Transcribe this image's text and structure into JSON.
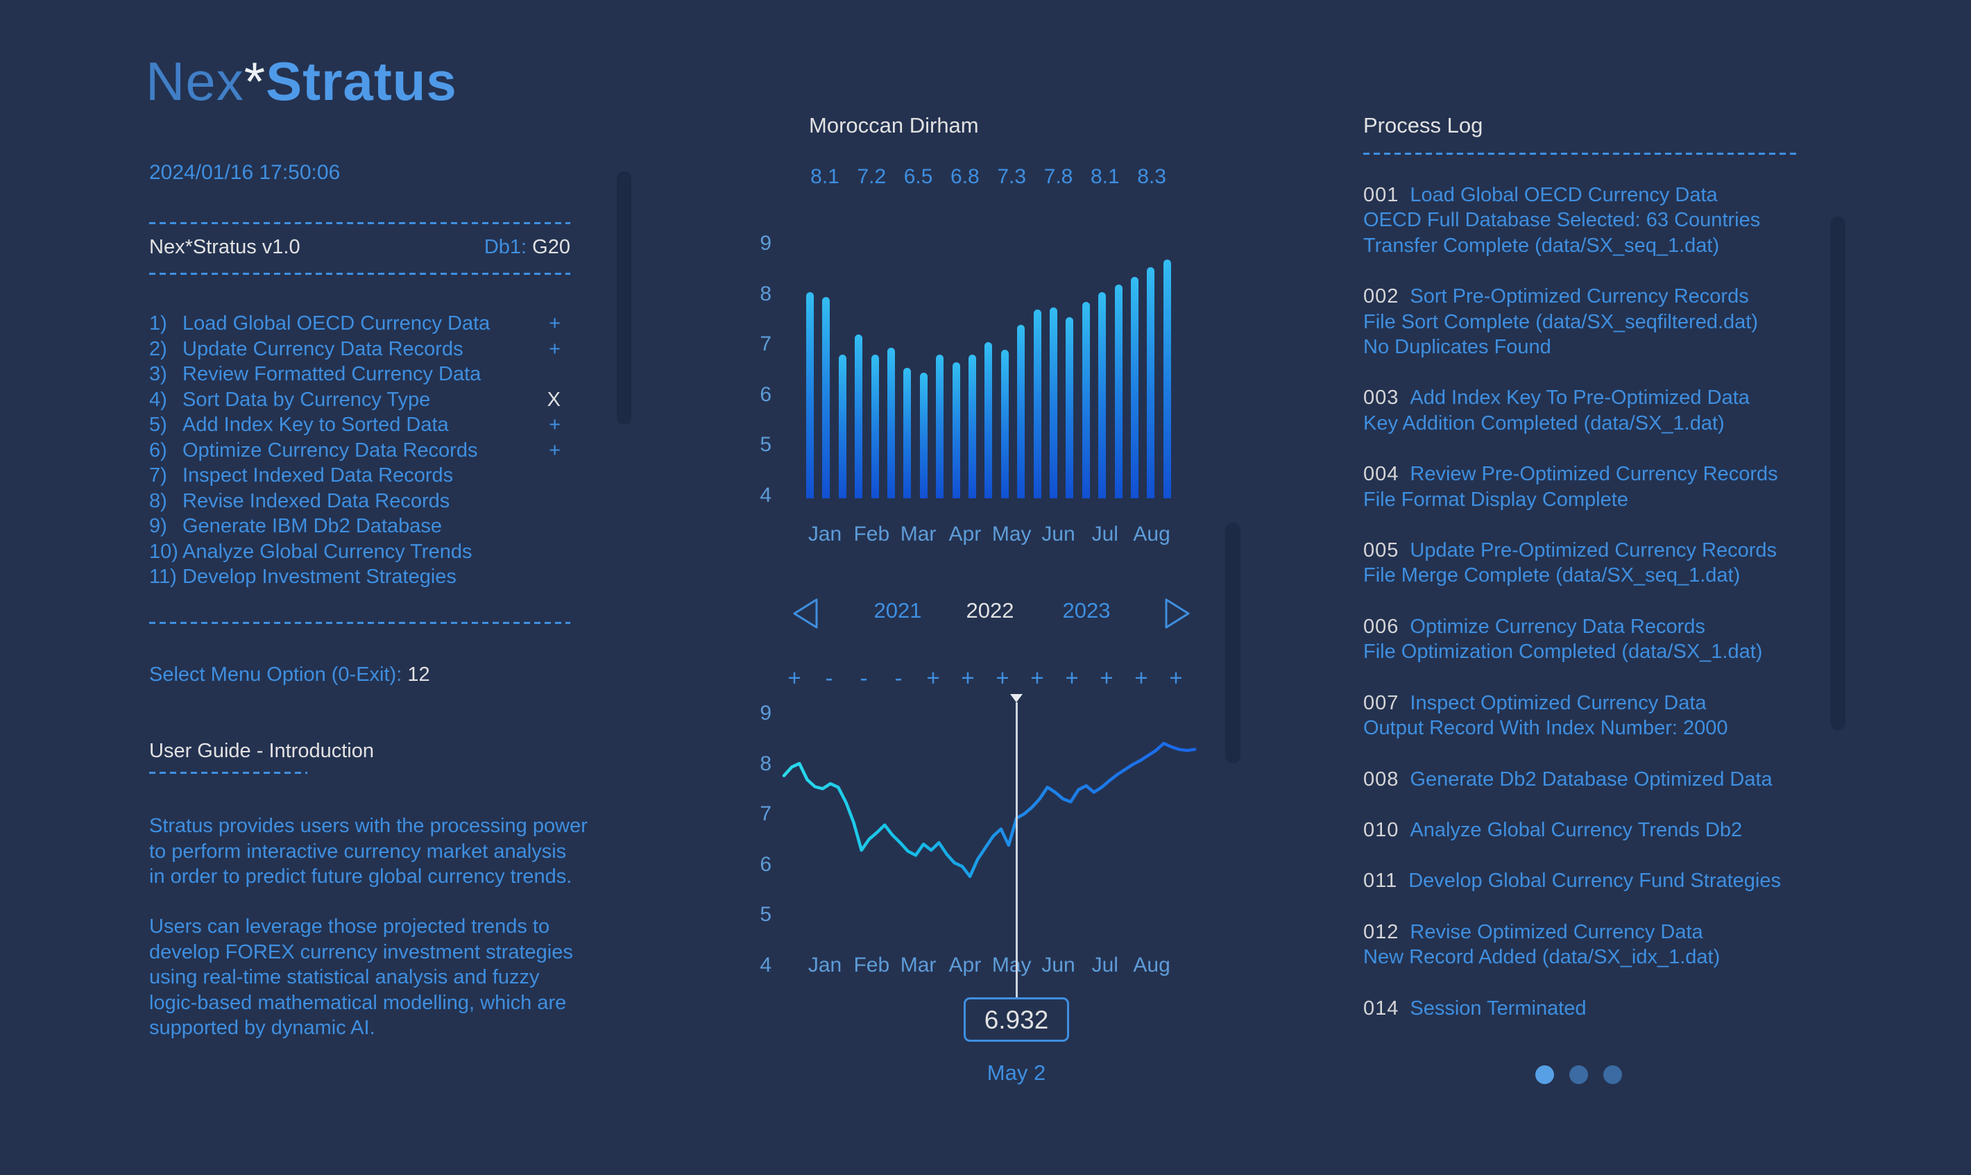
{
  "app": {
    "logo_prefix": "Nex",
    "logo_star": "*",
    "logo_suffix": "Stratus",
    "timestamp": "2024/01/16 17:50:06",
    "version": "Nex*Stratus v1.0",
    "db_label": "Db1:",
    "db_value": "G20"
  },
  "menu": {
    "items": [
      {
        "num": "1)",
        "label": "Load Global OECD Currency Data",
        "marker": "+"
      },
      {
        "num": "2)",
        "label": "Update Currency Data Records",
        "marker": "+"
      },
      {
        "num": "3)",
        "label": "Review Formatted Currency Data",
        "marker": ""
      },
      {
        "num": "4)",
        "label": "Sort Data by Currency Type",
        "marker": "X"
      },
      {
        "num": "5)",
        "label": "Add Index Key to Sorted Data",
        "marker": "+"
      },
      {
        "num": "6)",
        "label": "Optimize Currency Data Records",
        "marker": "+"
      },
      {
        "num": "7)",
        "label": "Inspect Indexed Data Records",
        "marker": ""
      },
      {
        "num": "8)",
        "label": "Revise Indexed Data Records",
        "marker": ""
      },
      {
        "num": "9)",
        "label": "Generate IBM Db2 Database",
        "marker": ""
      },
      {
        "num": "10)",
        "label": "Analyze Global Currency Trends",
        "marker": ""
      },
      {
        "num": "11)",
        "label": "Develop Investment Strategies",
        "marker": ""
      }
    ],
    "prompt": "Select Menu Option (0-Exit):",
    "prompt_value": "12"
  },
  "guide": {
    "title": "User Guide - Introduction",
    "paragraphs": [
      [
        "Stratus provides users with the processing power",
        "to perform interactive currency market analysis",
        "in order to predict future global currency trends."
      ],
      [
        "Users can leverage those projected trends to",
        "develop FOREX currency investment strategies",
        "using real-time statistical analysis and fuzzy",
        "logic-based mathematical modelling, which are",
        "supported by dynamic AI."
      ]
    ]
  },
  "middle": {
    "title": "Moroccan Dirham",
    "monthly_values": [
      "8.1",
      "7.2",
      "6.5",
      "6.8",
      "7.3",
      "7.8",
      "8.1",
      "8.3"
    ],
    "months": [
      "Jan",
      "Feb",
      "Mar",
      "Apr",
      "May",
      "Jun",
      "Jul",
      "Aug"
    ],
    "years": [
      "2021",
      "2022",
      "2023"
    ],
    "selected_year": "2022",
    "plus_minus": [
      "+",
      "-",
      "-",
      "-",
      "+",
      "+",
      "+",
      "+",
      "+",
      "+",
      "+",
      "+"
    ],
    "tooltip": {
      "value": "6.932",
      "date": "May 2"
    }
  },
  "chart_data": [
    {
      "type": "bar",
      "title": "Moroccan Dirham",
      "categories": [
        "Jan",
        "Feb",
        "Mar",
        "Apr",
        "May",
        "Jun",
        "Jul",
        "Aug"
      ],
      "monthly_averages": [
        8.1,
        7.2,
        6.5,
        6.8,
        7.3,
        7.8,
        8.1,
        8.3
      ],
      "values": [
        8.1,
        8.0,
        6.85,
        7.25,
        6.85,
        7.0,
        6.6,
        6.5,
        6.85,
        6.7,
        6.85,
        7.1,
        6.95,
        7.45,
        7.75,
        7.8,
        7.6,
        7.9,
        8.1,
        8.25,
        8.4,
        8.6,
        8.75
      ],
      "ylabel": "",
      "xlabel": "",
      "ylim": [
        4,
        9
      ],
      "yticks": [
        9,
        8,
        7,
        6,
        5,
        4
      ],
      "grid": false,
      "legend": "none",
      "selected_year": "2022"
    },
    {
      "type": "line",
      "title": "Moroccan Dirham (daily, 2022 Jan-Aug)",
      "categories": [
        "Jan",
        "Feb",
        "Mar",
        "Apr",
        "May",
        "Jun",
        "Jul",
        "Aug"
      ],
      "values": [
        7.78,
        7.95,
        8.02,
        7.7,
        7.56,
        7.52,
        7.62,
        7.55,
        7.25,
        6.85,
        6.3,
        6.52,
        6.65,
        6.8,
        6.6,
        6.45,
        6.28,
        6.2,
        6.42,
        6.3,
        6.45,
        6.22,
        6.05,
        5.98,
        5.78,
        6.12,
        6.35,
        6.58,
        6.72,
        6.4,
        6.932,
        7.02,
        7.15,
        7.32,
        7.55,
        7.45,
        7.32,
        7.26,
        7.5,
        7.58,
        7.45,
        7.55,
        7.68,
        7.8,
        7.9,
        8.0,
        8.08,
        8.18,
        8.28,
        8.42,
        8.35,
        8.3,
        8.28,
        8.3
      ],
      "ylim": [
        4,
        9
      ],
      "yticks": [
        9,
        8,
        7,
        6,
        5,
        4
      ],
      "grid": false,
      "legend": "none",
      "marker": {
        "value": "6.932",
        "label": "May 2"
      }
    }
  ],
  "process_log": {
    "title": "Process Log",
    "entries": [
      {
        "num": "001",
        "lines": [
          "Load Global OECD Currency Data",
          "OECD Full Database Selected: 63 Countries",
          "Transfer Complete (data/SX_seq_1.dat)"
        ]
      },
      {
        "num": "002",
        "lines": [
          "Sort Pre-Optimized Currency Records",
          "File Sort Complete (data/SX_seqfiltered.dat)",
          "No Duplicates Found"
        ]
      },
      {
        "num": "003",
        "lines": [
          "Add Index Key To Pre-Optimized Data",
          "Key Addition Completed (data/SX_1.dat)"
        ]
      },
      {
        "num": "004",
        "lines": [
          "Review Pre-Optimized Currency Records",
          "File Format Display Complete"
        ]
      },
      {
        "num": "005",
        "lines": [
          "Update Pre-Optimized Currency Records",
          "File Merge Complete (data/SX_seq_1.dat)"
        ]
      },
      {
        "num": "006",
        "lines": [
          "Optimize Currency Data Records",
          "File Optimization Completed (data/SX_1.dat)"
        ]
      },
      {
        "num": "007",
        "lines": [
          "Inspect Optimized Currency Data",
          "Output Record With Index Number: 2000"
        ]
      },
      {
        "num": "008",
        "lines": [
          "Generate Db2 Database Optimized Data"
        ]
      },
      {
        "num": "010",
        "lines": [
          "Analyze Global Currency Trends Db2"
        ]
      },
      {
        "num": "011",
        "lines": [
          "Develop Global Currency Fund Strategies"
        ]
      },
      {
        "num": "012",
        "lines": [
          "Revise Optimized Currency Data",
          "New Record Added (data/SX_idx_1.dat)"
        ]
      },
      {
        "num": "014",
        "lines": [
          "Session Terminated"
        ]
      }
    ],
    "pagination": [
      "active",
      "inactive",
      "inactive"
    ]
  },
  "colors": {
    "background": "#243250",
    "text_blue": "#3F8FE0",
    "label_blue": "#5E9CD8",
    "text_white": "#E2E2E2",
    "bar_gradient_top": "#33BDF2",
    "bar_gradient_bottom": "#1150D2",
    "line_gradient_start": "#2BD9EC",
    "line_gradient_end": "#1B66E8",
    "indicator_line": "#CDD5DF",
    "dot_active": "#57A0E6",
    "dot_inactive": "#3B6BA2",
    "scroll_track": "#1D2A45"
  }
}
